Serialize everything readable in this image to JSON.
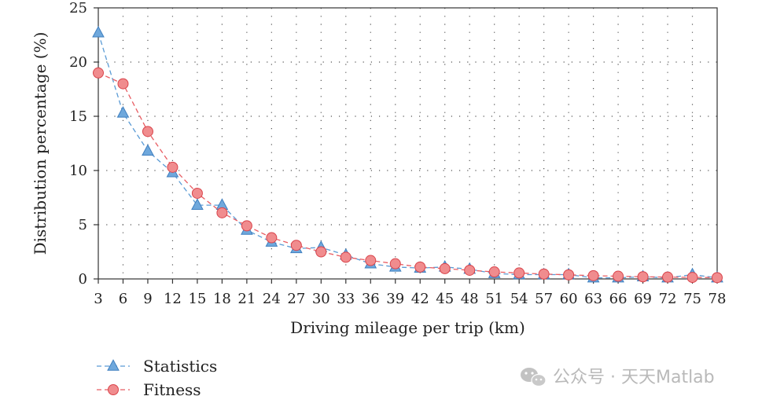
{
  "chart_data": {
    "type": "line",
    "title": "",
    "xlabel": "Driving mileage per trip (km)",
    "ylabel": "Distribution percentage (%)",
    "ylim": [
      0,
      25
    ],
    "y_ticks": [
      0,
      5,
      10,
      15,
      20,
      25
    ],
    "grid": true,
    "legend_position": "bottom-left",
    "categories": [
      "3",
      "6",
      "9",
      "12",
      "15",
      "18",
      "21",
      "24",
      "27",
      "30",
      "33",
      "36",
      "39",
      "42",
      "45",
      "48",
      "51",
      "54",
      "57",
      "60",
      "63",
      "66",
      "69",
      "72",
      "75",
      "78"
    ],
    "series": [
      {
        "name": "Statistics",
        "color": "#5b9bd5",
        "marker": "triangle",
        "values": [
          22.7,
          15.3,
          11.8,
          9.8,
          6.8,
          6.8,
          4.5,
          3.4,
          2.8,
          2.9,
          2.2,
          1.4,
          1.1,
          1.0,
          1.1,
          0.9,
          0.5,
          0.4,
          0.4,
          0.4,
          0.1,
          0.1,
          0.2,
          0.1,
          0.4,
          0.1
        ]
      },
      {
        "name": "Fitness",
        "color": "#e85d63",
        "marker": "circle",
        "values": [
          19.0,
          18.0,
          13.6,
          10.3,
          7.9,
          6.1,
          4.9,
          3.8,
          3.1,
          2.5,
          2.0,
          1.7,
          1.4,
          1.1,
          0.95,
          0.8,
          0.65,
          0.55,
          0.45,
          0.38,
          0.3,
          0.25,
          0.2,
          0.17,
          0.14,
          0.12
        ]
      }
    ]
  },
  "watermark": {
    "text": "公众号 · 天天Matlab",
    "icon": "wechat-icon"
  }
}
